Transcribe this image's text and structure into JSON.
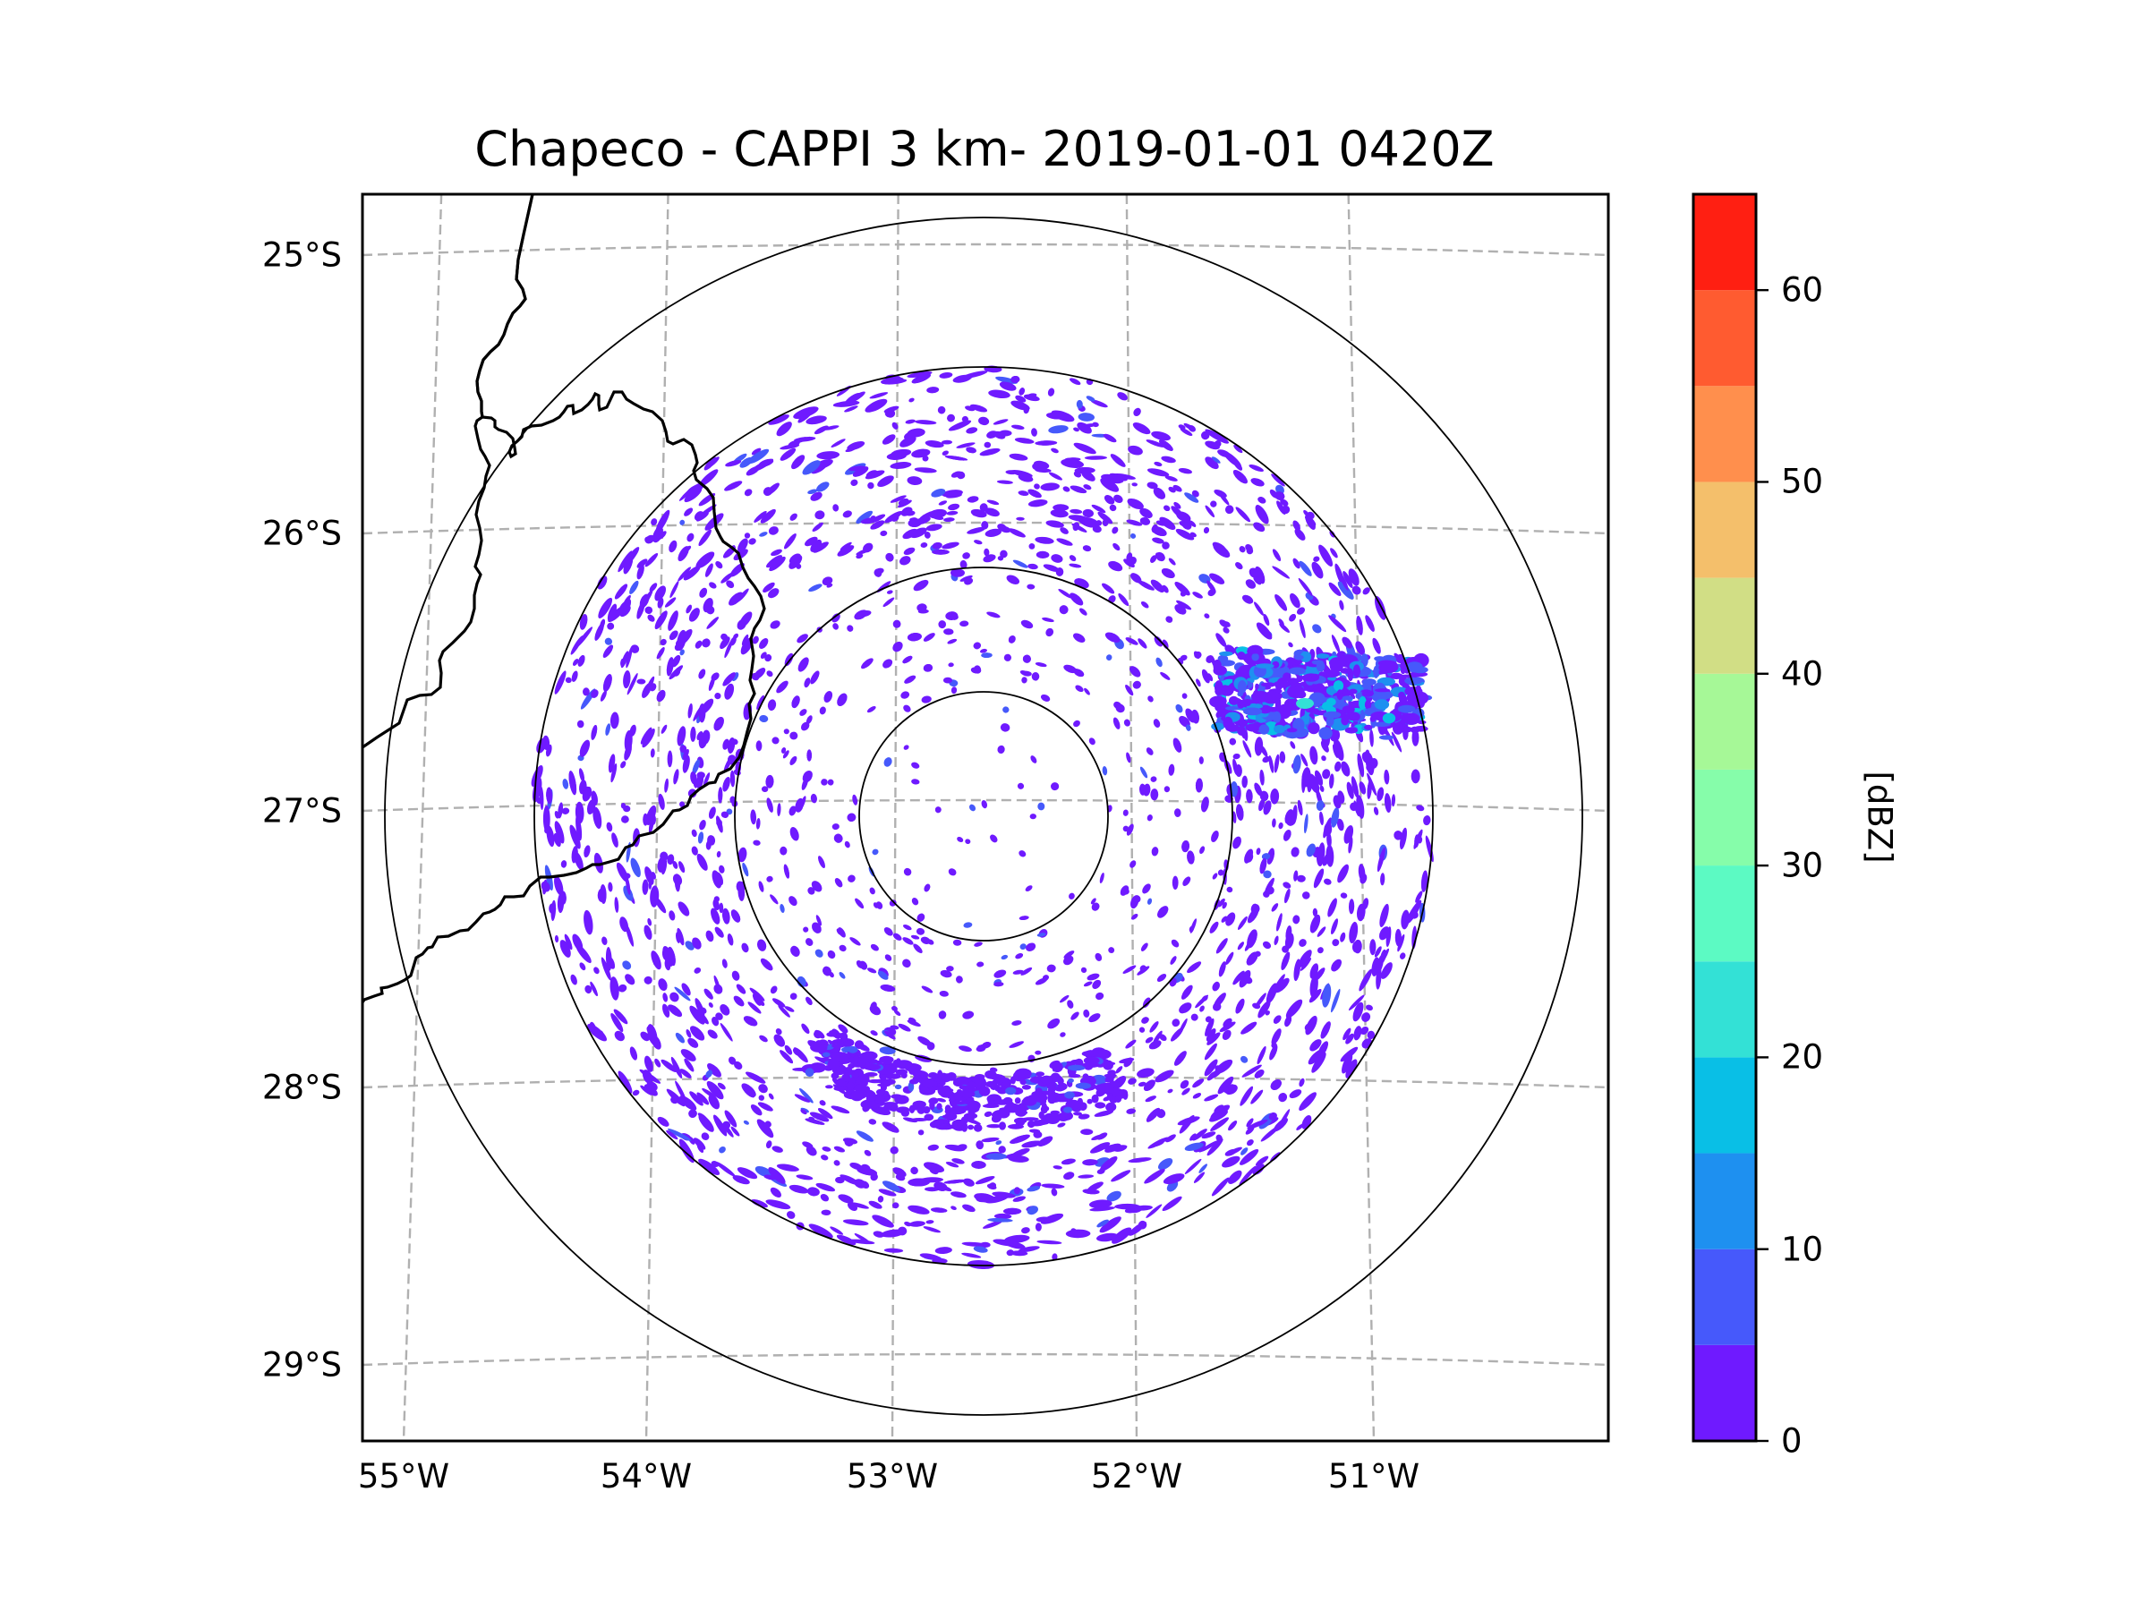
{
  "title": "Chapeco - CAPPI 3 km- 2019-01-01 0420Z",
  "chart_data": {
    "type": "heatmap",
    "title": "Chapeco - CAPPI 3 km- 2019-01-01 0420Z",
    "radar_site": "Chapeco",
    "product": "CAPPI",
    "altitude": "3 km",
    "date": "2019-01-01",
    "time": "0420Z",
    "variable_units": "[dBZ]",
    "map": {
      "lon_range": [
        -55.2,
        -50.1
      ],
      "lat_range": [
        -29.3,
        -24.8
      ],
      "radar_center": {
        "lon": -52.6,
        "lat": -27.02
      },
      "range_rings_count": 4,
      "gridlines": "dashed grey",
      "lat_ticks": [
        {
          "value": -25,
          "label": "25°S"
        },
        {
          "value": -26,
          "label": "26°S"
        },
        {
          "value": -27,
          "label": "27°S"
        },
        {
          "value": -28,
          "label": "28°S"
        },
        {
          "value": -29,
          "label": "29°S"
        }
      ],
      "lon_ticks": [
        {
          "value": -55,
          "label": "55°W"
        },
        {
          "value": -54,
          "label": "54°W"
        },
        {
          "value": -53,
          "label": "53°W"
        },
        {
          "value": -52,
          "label": "52°W"
        },
        {
          "value": -51,
          "label": "51°W"
        }
      ],
      "features": [
        "country borders (Argentina / Paraguay / Brazil)"
      ],
      "echo_summary": "Widespread weak echoes (0–5 dBZ) scattered in an annulus around the radar; an east-west band of stronger echoes (up to ~20–25 dBZ) near 26.7°S, 51.3°W–50.9°W; enhanced ring of echoes south of the radar near 27.9°S."
    },
    "colorbar": {
      "label": "[dBZ]",
      "range": [
        0,
        65
      ],
      "step": 5,
      "ticks": [
        0,
        10,
        20,
        30,
        40,
        50,
        60
      ],
      "tick_labels": [
        "0",
        "10",
        "20",
        "30",
        "40",
        "50",
        "60"
      ],
      "bins": [
        {
          "from": 0,
          "to": 5,
          "color": "#6f1aff"
        },
        {
          "from": 5,
          "to": 10,
          "color": "#4659fb"
        },
        {
          "from": 10,
          "to": 15,
          "color": "#1e90f0"
        },
        {
          "from": 15,
          "to": 20,
          "color": "#09bfe6"
        },
        {
          "from": 20,
          "to": 25,
          "color": "#33e1d6"
        },
        {
          "from": 25,
          "to": 30,
          "color": "#5cfac3"
        },
        {
          "from": 30,
          "to": 35,
          "color": "#86fdaa"
        },
        {
          "from": 35,
          "to": 40,
          "color": "#a6f897"
        },
        {
          "from": 40,
          "to": 45,
          "color": "#d1de85"
        },
        {
          "from": 45,
          "to": 50,
          "color": "#f4bf6b"
        },
        {
          "from": 50,
          "to": 55,
          "color": "#ff8f4d"
        },
        {
          "from": 55,
          "to": 60,
          "color": "#ff5b30"
        },
        {
          "from": 60,
          "to": 65,
          "color": "#ff1f12"
        }
      ]
    }
  }
}
